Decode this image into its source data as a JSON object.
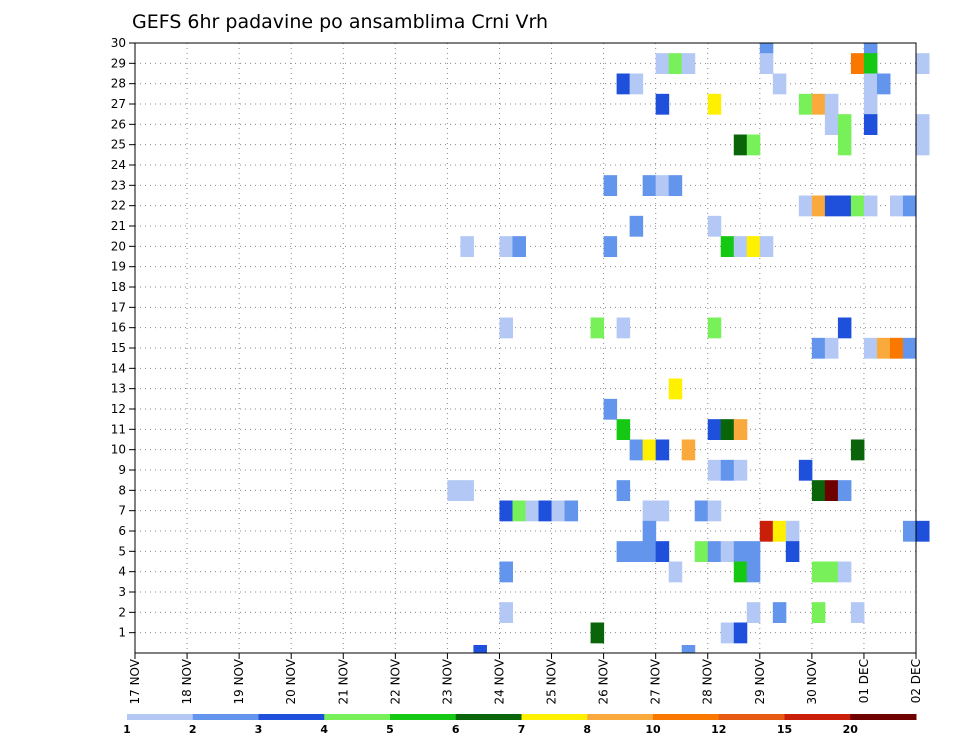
{
  "chart_data": {
    "type": "heatmap",
    "title": "GEFS 6hr padavine po ansamblima Crni Vrh",
    "x_tick_labels": [
      "17 NOV",
      "18 NOV",
      "19 NOV",
      "20 NOV",
      "21 NOV",
      "22 NOV",
      "23 NOV",
      "24 NOV",
      "25 NOV",
      "26 NOV",
      "27 NOV",
      "28 NOV",
      "29 NOV",
      "30 NOV",
      "01 DEC",
      "02 DEC"
    ],
    "y_tick_labels": [
      "1",
      "2",
      "3",
      "4",
      "5",
      "6",
      "7",
      "8",
      "9",
      "10",
      "11",
      "12",
      "13",
      "14",
      "15",
      "16",
      "17",
      "18",
      "19",
      "20",
      "21",
      "22",
      "23",
      "24",
      "25",
      "26",
      "27",
      "28",
      "29",
      "30"
    ],
    "x_step": "6hr",
    "ylim": [
      0,
      30
    ],
    "grid": true,
    "legend": {
      "position": "bottom",
      "labels": [
        "1",
        "2",
        "3",
        "4",
        "5",
        "6",
        "7",
        "8",
        "10",
        "12",
        "15",
        "20"
      ],
      "colors": [
        "#b4c8f5",
        "#6495ed",
        "#1e50dc",
        "#78f05a",
        "#14c814",
        "#0a640a",
        "#fff000",
        "#faaa3c",
        "#fa7800",
        "#e65a14",
        "#c81e0a",
        "#6e0000"
      ]
    },
    "cells": [
      {
        "member": 30,
        "time": "29 NOV 00Z",
        "bin": 2
      },
      {
        "member": 30,
        "time": "01 DEC 00Z",
        "bin": 2
      },
      {
        "member": 29,
        "time": "27 NOV 00Z",
        "bin": 1
      },
      {
        "member": 29,
        "time": "27 NOV 06Z",
        "bin": 4
      },
      {
        "member": 29,
        "time": "27 NOV 12Z",
        "bin": 1
      },
      {
        "member": 29,
        "time": "29 NOV 00Z",
        "bin": 1
      },
      {
        "member": 29,
        "time": "30 NOV 18Z",
        "bin": 9
      },
      {
        "member": 29,
        "time": "01 DEC 00Z",
        "bin": 5
      },
      {
        "member": 29,
        "time": "02 DEC 00Z",
        "bin": 1
      },
      {
        "member": 28,
        "time": "26 NOV 06Z",
        "bin": 3
      },
      {
        "member": 28,
        "time": "26 NOV 12Z",
        "bin": 1
      },
      {
        "member": 28,
        "time": "29 NOV 06Z",
        "bin": 1
      },
      {
        "member": 28,
        "time": "01 DEC 00Z",
        "bin": 1
      },
      {
        "member": 28,
        "time": "01 DEC 06Z",
        "bin": 2
      },
      {
        "member": 27,
        "time": "27 NOV 00Z",
        "bin": 3
      },
      {
        "member": 27,
        "time": "28 NOV 00Z",
        "bin": 7
      },
      {
        "member": 27,
        "time": "29 NOV 18Z",
        "bin": 4
      },
      {
        "member": 27,
        "time": "30 NOV 00Z",
        "bin": 8
      },
      {
        "member": 27,
        "time": "30 NOV 06Z",
        "bin": 1
      },
      {
        "member": 27,
        "time": "01 DEC 00Z",
        "bin": 1
      },
      {
        "member": 26,
        "time": "30 NOV 06Z",
        "bin": 1
      },
      {
        "member": 26,
        "time": "30 NOV 12Z",
        "bin": 4
      },
      {
        "member": 26,
        "time": "01 DEC 00Z",
        "bin": 3
      },
      {
        "member": 26,
        "time": "02 DEC 00Z",
        "bin": 1
      },
      {
        "member": 25,
        "time": "28 NOV 12Z",
        "bin": 6
      },
      {
        "member": 25,
        "time": "28 NOV 18Z",
        "bin": 4
      },
      {
        "member": 25,
        "time": "30 NOV 12Z",
        "bin": 4
      },
      {
        "member": 25,
        "time": "02 DEC 00Z",
        "bin": 1
      },
      {
        "member": 23,
        "time": "26 NOV 00Z",
        "bin": 2
      },
      {
        "member": 23,
        "time": "26 NOV 18Z",
        "bin": 2
      },
      {
        "member": 23,
        "time": "27 NOV 00Z",
        "bin": 1
      },
      {
        "member": 23,
        "time": "27 NOV 06Z",
        "bin": 2
      },
      {
        "member": 22,
        "time": "29 NOV 18Z",
        "bin": 1
      },
      {
        "member": 22,
        "time": "30 NOV 00Z",
        "bin": 8
      },
      {
        "member": 22,
        "time": "30 NOV 06Z",
        "bin": 3
      },
      {
        "member": 22,
        "time": "30 NOV 12Z",
        "bin": 3
      },
      {
        "member": 22,
        "time": "30 NOV 18Z",
        "bin": 4
      },
      {
        "member": 22,
        "time": "01 DEC 00Z",
        "bin": 1
      },
      {
        "member": 22,
        "time": "01 DEC 12Z",
        "bin": 1
      },
      {
        "member": 22,
        "time": "01 DEC 18Z",
        "bin": 2
      },
      {
        "member": 21,
        "time": "26 NOV 12Z",
        "bin": 2
      },
      {
        "member": 21,
        "time": "28 NOV 00Z",
        "bin": 1
      },
      {
        "member": 20,
        "time": "23 NOV 06Z",
        "bin": 1
      },
      {
        "member": 20,
        "time": "24 NOV 00Z",
        "bin": 1
      },
      {
        "member": 20,
        "time": "24 NOV 06Z",
        "bin": 2
      },
      {
        "member": 20,
        "time": "26 NOV 00Z",
        "bin": 2
      },
      {
        "member": 20,
        "time": "28 NOV 06Z",
        "bin": 5
      },
      {
        "member": 20,
        "time": "28 NOV 12Z",
        "bin": 1
      },
      {
        "member": 20,
        "time": "28 NOV 18Z",
        "bin": 7
      },
      {
        "member": 20,
        "time": "29 NOV 00Z",
        "bin": 1
      },
      {
        "member": 16,
        "time": "24 NOV 00Z",
        "bin": 1
      },
      {
        "member": 16,
        "time": "25 NOV 18Z",
        "bin": 4
      },
      {
        "member": 16,
        "time": "26 NOV 06Z",
        "bin": 1
      },
      {
        "member": 16,
        "time": "28 NOV 00Z",
        "bin": 4
      },
      {
        "member": 16,
        "time": "30 NOV 12Z",
        "bin": 3
      },
      {
        "member": 15,
        "time": "30 NOV 00Z",
        "bin": 2
      },
      {
        "member": 15,
        "time": "30 NOV 06Z",
        "bin": 1
      },
      {
        "member": 15,
        "time": "01 DEC 00Z",
        "bin": 1
      },
      {
        "member": 15,
        "time": "01 DEC 06Z",
        "bin": 8
      },
      {
        "member": 15,
        "time": "01 DEC 12Z",
        "bin": 9
      },
      {
        "member": 15,
        "time": "01 DEC 18Z",
        "bin": 2
      },
      {
        "member": 13,
        "time": "27 NOV 06Z",
        "bin": 7
      },
      {
        "member": 12,
        "time": "26 NOV 00Z",
        "bin": 2
      },
      {
        "member": 11,
        "time": "26 NOV 06Z",
        "bin": 5
      },
      {
        "member": 11,
        "time": "28 NOV 00Z",
        "bin": 3
      },
      {
        "member": 11,
        "time": "28 NOV 06Z",
        "bin": 6
      },
      {
        "member": 11,
        "time": "28 NOV 12Z",
        "bin": 8
      },
      {
        "member": 10,
        "time": "26 NOV 12Z",
        "bin": 2
      },
      {
        "member": 10,
        "time": "26 NOV 18Z",
        "bin": 7
      },
      {
        "member": 10,
        "time": "27 NOV 00Z",
        "bin": 3
      },
      {
        "member": 10,
        "time": "27 NOV 12Z",
        "bin": 8
      },
      {
        "member": 10,
        "time": "30 NOV 18Z",
        "bin": 6
      },
      {
        "member": 9,
        "time": "28 NOV 00Z",
        "bin": 1
      },
      {
        "member": 9,
        "time": "28 NOV 06Z",
        "bin": 2
      },
      {
        "member": 9,
        "time": "28 NOV 12Z",
        "bin": 1
      },
      {
        "member": 9,
        "time": "29 NOV 18Z",
        "bin": 3
      },
      {
        "member": 8,
        "time": "23 NOV 00Z",
        "bin": 1
      },
      {
        "member": 8,
        "time": "23 NOV 06Z",
        "bin": 1
      },
      {
        "member": 8,
        "time": "26 NOV 06Z",
        "bin": 2
      },
      {
        "member": 8,
        "time": "30 NOV 00Z",
        "bin": 6
      },
      {
        "member": 8,
        "time": "30 NOV 06Z",
        "bin": 12
      },
      {
        "member": 8,
        "time": "30 NOV 12Z",
        "bin": 2
      },
      {
        "member": 7,
        "time": "24 NOV 00Z",
        "bin": 3
      },
      {
        "member": 7,
        "time": "24 NOV 06Z",
        "bin": 4
      },
      {
        "member": 7,
        "time": "24 NOV 12Z",
        "bin": 1
      },
      {
        "member": 7,
        "time": "24 NOV 18Z",
        "bin": 3
      },
      {
        "member": 7,
        "time": "25 NOV 00Z",
        "bin": 1
      },
      {
        "member": 7,
        "time": "25 NOV 06Z",
        "bin": 2
      },
      {
        "member": 7,
        "time": "26 NOV 18Z",
        "bin": 1
      },
      {
        "member": 7,
        "time": "27 NOV 00Z",
        "bin": 1
      },
      {
        "member": 7,
        "time": "27 NOV 18Z",
        "bin": 2
      },
      {
        "member": 7,
        "time": "28 NOV 00Z",
        "bin": 1
      },
      {
        "member": 6,
        "time": "26 NOV 18Z",
        "bin": 2
      },
      {
        "member": 6,
        "time": "29 NOV 00Z",
        "bin": 11
      },
      {
        "member": 6,
        "time": "29 NOV 06Z",
        "bin": 7
      },
      {
        "member": 6,
        "time": "29 NOV 12Z",
        "bin": 1
      },
      {
        "member": 6,
        "time": "01 DEC 18Z",
        "bin": 2
      },
      {
        "member": 6,
        "time": "02 DEC 00Z",
        "bin": 3
      },
      {
        "member": 5,
        "time": "26 NOV 06Z",
        "bin": 2
      },
      {
        "member": 5,
        "time": "26 NOV 12Z",
        "bin": 2
      },
      {
        "member": 5,
        "time": "26 NOV 18Z",
        "bin": 2
      },
      {
        "member": 5,
        "time": "27 NOV 00Z",
        "bin": 3
      },
      {
        "member": 5,
        "time": "27 NOV 18Z",
        "bin": 4
      },
      {
        "member": 5,
        "time": "28 NOV 00Z",
        "bin": 2
      },
      {
        "member": 5,
        "time": "28 NOV 06Z",
        "bin": 1
      },
      {
        "member": 5,
        "time": "28 NOV 12Z",
        "bin": 2
      },
      {
        "member": 5,
        "time": "28 NOV 18Z",
        "bin": 2
      },
      {
        "member": 5,
        "time": "29 NOV 12Z",
        "bin": 3
      },
      {
        "member": 4,
        "time": "24 NOV 00Z",
        "bin": 2
      },
      {
        "member": 4,
        "time": "27 NOV 06Z",
        "bin": 1
      },
      {
        "member": 4,
        "time": "28 NOV 12Z",
        "bin": 5
      },
      {
        "member": 4,
        "time": "28 NOV 18Z",
        "bin": 2
      },
      {
        "member": 4,
        "time": "30 NOV 00Z",
        "bin": 4
      },
      {
        "member": 4,
        "time": "30 NOV 06Z",
        "bin": 4
      },
      {
        "member": 4,
        "time": "30 NOV 12Z",
        "bin": 1
      },
      {
        "member": 2,
        "time": "24 NOV 00Z",
        "bin": 1
      },
      {
        "member": 2,
        "time": "28 NOV 18Z",
        "bin": 1
      },
      {
        "member": 2,
        "time": "29 NOV 06Z",
        "bin": 2
      },
      {
        "member": 2,
        "time": "30 NOV 00Z",
        "bin": 4
      },
      {
        "member": 2,
        "time": "30 NOV 18Z",
        "bin": 1
      },
      {
        "member": 1,
        "time": "25 NOV 18Z",
        "bin": 6
      },
      {
        "member": 1,
        "time": "28 NOV 06Z",
        "bin": 1
      },
      {
        "member": 1,
        "time": "28 NOV 12Z",
        "bin": 3
      },
      {
        "member": 0,
        "time": "23 NOV 12Z",
        "bin": 3
      },
      {
        "member": 0,
        "time": "27 NOV 12Z",
        "bin": 2
      }
    ]
  }
}
